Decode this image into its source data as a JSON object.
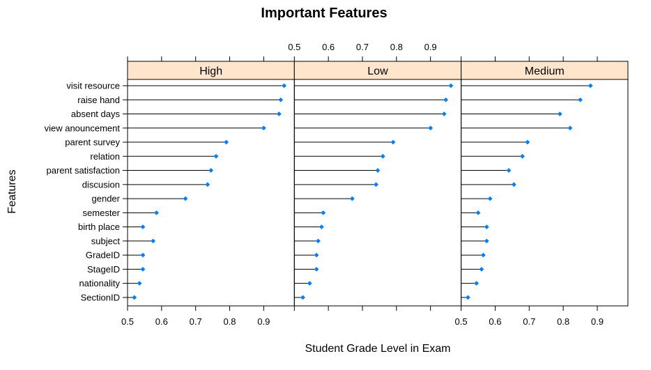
{
  "chart_data": {
    "type": "dotplot",
    "title": "Important Features",
    "xlabel": "Student Grade Level in Exam",
    "ylabel": "Features",
    "xlim": [
      0.5,
      0.99
    ],
    "x_ticks": [
      "0.5",
      "0.6",
      "0.7",
      "0.8",
      "0.9"
    ],
    "x_tick_values": [
      0.5,
      0.6,
      0.7,
      0.8,
      0.9
    ],
    "baseline": 0.5,
    "features": [
      "visit resource",
      "raise hand",
      "absent days",
      "view anouncement",
      "parent survey",
      "relation",
      "parent satisfaction",
      "discusion",
      "gender",
      "semester",
      "birth place",
      "subject",
      "GradeID",
      "StageID",
      "nationality",
      "SectionID"
    ],
    "panels": [
      {
        "name": "High",
        "values": [
          0.96,
          0.95,
          0.945,
          0.9,
          0.79,
          0.76,
          0.745,
          0.735,
          0.67,
          0.585,
          0.545,
          0.575,
          0.545,
          0.545,
          0.535,
          0.52
        ]
      },
      {
        "name": "Low",
        "values": [
          0.96,
          0.945,
          0.94,
          0.9,
          0.79,
          0.76,
          0.745,
          0.74,
          0.67,
          0.585,
          0.58,
          0.57,
          0.565,
          0.565,
          0.545,
          0.525
        ]
      },
      {
        "name": "Medium",
        "values": [
          0.88,
          0.85,
          0.79,
          0.82,
          0.695,
          0.68,
          0.64,
          0.655,
          0.585,
          0.55,
          0.575,
          0.575,
          0.565,
          0.56,
          0.545,
          0.52
        ]
      }
    ],
    "colors": {
      "strip": "#ffe5cc",
      "point": "#0080ff",
      "line": "#000000",
      "border": "#000000"
    }
  }
}
